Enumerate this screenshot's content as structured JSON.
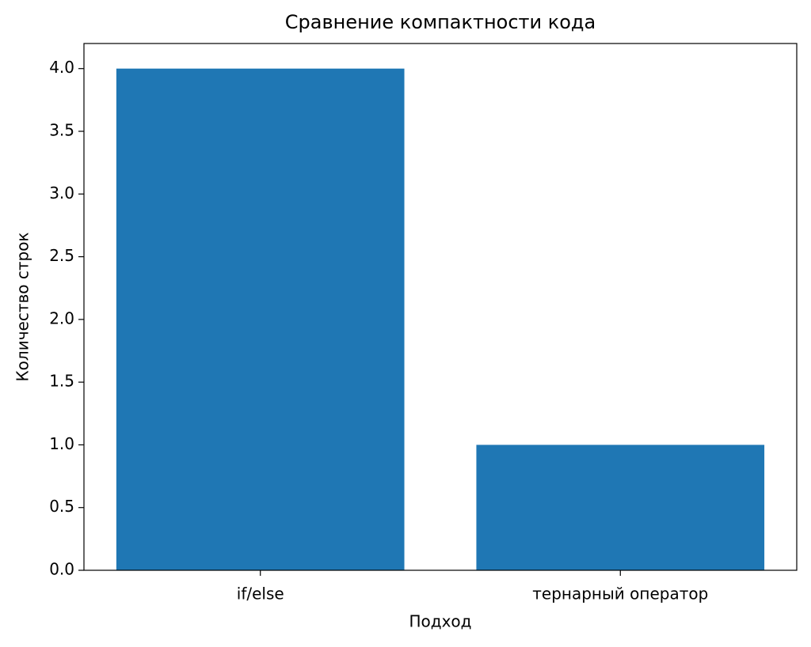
{
  "chart_data": {
    "type": "bar",
    "title": "Сравнение компактности кода",
    "x_label": "Подход",
    "y_label": "Количество строк",
    "categories": [
      "if/else",
      "тернарный оператор"
    ],
    "values": [
      4,
      1
    ],
    "color": "#1f77b4",
    "ylim": [
      0,
      4.2
    ],
    "yticks": [
      {
        "value": 0,
        "label": "0.0"
      },
      0.5,
      {
        "value": 1,
        "label": "1.0"
      },
      1.5,
      {
        "value": 2,
        "label": "2.0"
      },
      2.5,
      {
        "value": 3,
        "label": "3.0"
      },
      3.5,
      {
        "value": 4,
        "label": "4.0"
      }
    ],
    "grid": false
  }
}
